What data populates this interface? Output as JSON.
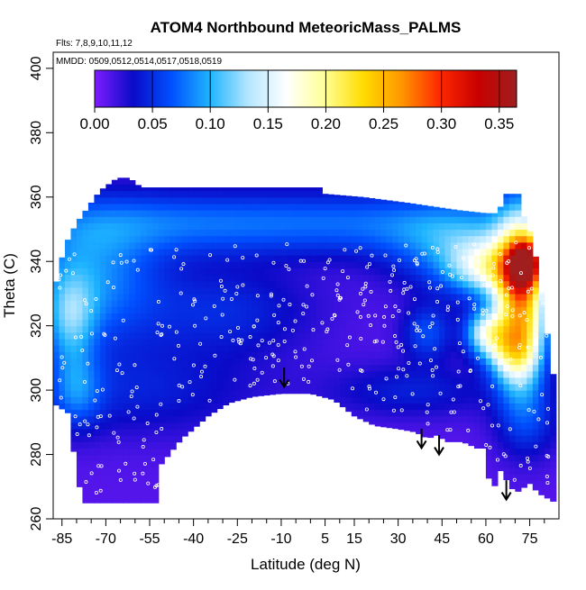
{
  "chart_data": {
    "type": "heatmap",
    "title": "ATOM4 Northbound MeteoricMass_PALMS",
    "subtitle_flights": "Flts: 7,8,9,10,11,12",
    "subtitle_dates": "MMDD: 0509,0512,0514,0517,0518,0519",
    "xlabel": "Latitude (deg N)",
    "ylabel": "Theta (C)",
    "xlim": [
      -88,
      85
    ],
    "ylim": [
      260,
      405
    ],
    "x_ticks": [
      -85,
      -70,
      -55,
      -40,
      -25,
      -10,
      5,
      15,
      30,
      45,
      60,
      75
    ],
    "x_minor_ticks": [
      -80,
      -75,
      -65,
      -60,
      -50,
      -45,
      -35,
      -30,
      -20,
      -15,
      -5,
      0,
      10,
      20,
      25,
      35,
      40,
      50,
      55,
      65,
      70,
      80
    ],
    "y_ticks": [
      260,
      280,
      300,
      320,
      340,
      360,
      380,
      400
    ],
    "colorbar": {
      "min": 0.0,
      "max": 0.365,
      "ticks": [
        "0.00",
        "0.05",
        "0.10",
        "0.15",
        "0.20",
        "0.25",
        "0.30",
        "0.35"
      ],
      "tick_values": [
        0.0,
        0.05,
        0.1,
        0.15,
        0.2,
        0.25,
        0.3,
        0.35
      ],
      "colors": [
        "#7f1cff",
        "#0a0ac8",
        "#0050ff",
        "#1eb4ff",
        "#b4e6ff",
        "#ffffff",
        "#ffff96",
        "#ffdc00",
        "#ff9600",
        "#ff2800",
        "#c80000",
        "#a01e1e"
      ]
    },
    "arrows": [
      {
        "lat": -9,
        "theta": 304
      },
      {
        "lat": 38,
        "theta": 285
      },
      {
        "lat": 44,
        "theta": 283
      },
      {
        "lat": 67,
        "theta": 269
      }
    ]
  }
}
